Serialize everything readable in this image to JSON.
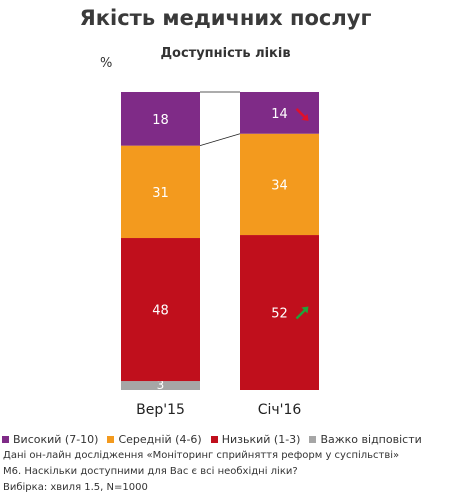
{
  "chart_data": {
    "type": "bar",
    "stacked": true,
    "title": "Якість медичних послуг",
    "subtitle": "Доступність ліків",
    "ylabel": "%",
    "categories": [
      "Вер'15",
      "Січ'16"
    ],
    "series": [
      {
        "name": "Важко  відповісти",
        "values": [
          3,
          0
        ],
        "color": "#a6a6a6"
      },
      {
        "name": "Низький (1-3)",
        "values": [
          48,
          52
        ],
        "color": "#c00f1c"
      },
      {
        "name": "Середній (4-6)",
        "values": [
          31,
          34
        ],
        "color": "#f39a1e"
      },
      {
        "name": "Високий (7-10)",
        "values": [
          18,
          14
        ],
        "color": "#7f2b87"
      }
    ],
    "legend_order": [
      "Високий (7-10)",
      "Середній (4-6)",
      "Низький (1-3)",
      "Важко  відповісти"
    ],
    "annotations": [
      {
        "category": "Січ'16",
        "series": "Високий (7-10)",
        "arrow": "down",
        "color": "#e0102a"
      },
      {
        "category": "Січ'16",
        "series": "Низький (1-3)",
        "arrow": "up",
        "color": "#1fa33a"
      }
    ],
    "connector_lines": true,
    "ylim": [
      0,
      100
    ]
  },
  "notes": [
    "Дані он-лайн дослідження «Моніторинг сприйняття реформ у суспільстві»",
    "М6. Наскільки доступними для Вас є всі необхідні ліки?",
    "Вибірка: хвиля 1.5, N=1000"
  ]
}
